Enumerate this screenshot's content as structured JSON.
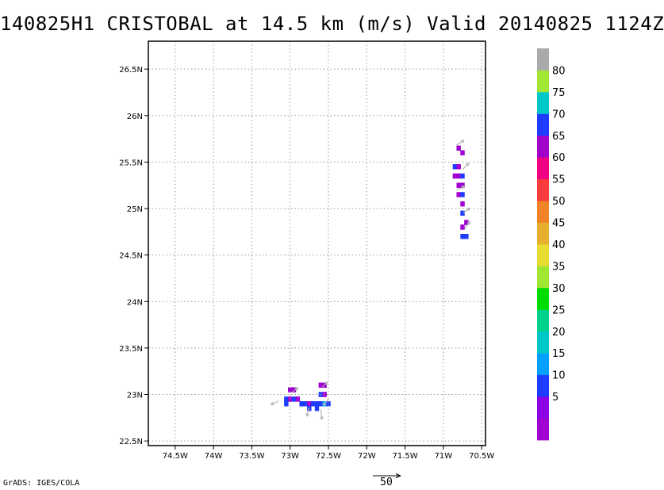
{
  "title": "140825H1 CRISTOBAL at 14.5 km (m/s) Valid 20140825 1124Z",
  "credit": "GrADS: IGES/COLA",
  "vector_reference": {
    "value": "50"
  },
  "map": {
    "lon_range": [
      -74.85,
      -70.45
    ],
    "lat_range": [
      22.45,
      26.8
    ],
    "lon_ticks": [
      {
        "value": -74.5,
        "label": "74.5W"
      },
      {
        "value": -74.0,
        "label": "74W"
      },
      {
        "value": -73.5,
        "label": "73.5W"
      },
      {
        "value": -73.0,
        "label": "73W"
      },
      {
        "value": -72.5,
        "label": "72.5W"
      },
      {
        "value": -72.0,
        "label": "72W"
      },
      {
        "value": -71.5,
        "label": "71.5W"
      },
      {
        "value": -71.0,
        "label": "71W"
      },
      {
        "value": -70.5,
        "label": "70.5W"
      }
    ],
    "lat_ticks": [
      {
        "value": 22.5,
        "label": "22.5N"
      },
      {
        "value": 23.0,
        "label": "23N"
      },
      {
        "value": 23.5,
        "label": "23.5N"
      },
      {
        "value": 24.0,
        "label": "24N"
      },
      {
        "value": 24.5,
        "label": "24.5N"
      },
      {
        "value": 25.0,
        "label": "25N"
      },
      {
        "value": 25.5,
        "label": "25.5N"
      },
      {
        "value": 26.0,
        "label": "26N"
      },
      {
        "value": 26.5,
        "label": "26.5N"
      }
    ],
    "grid": true
  },
  "colorbar": {
    "levels": [
      {
        "label": "",
        "color": "#a000d2"
      },
      {
        "label": "5",
        "color": "#8c00e6"
      },
      {
        "label": "10",
        "color": "#1e3cff"
      },
      {
        "label": "15",
        "color": "#00a0ff"
      },
      {
        "label": "20",
        "color": "#00c8c8"
      },
      {
        "label": "25",
        "color": "#00d28c"
      },
      {
        "label": "30",
        "color": "#00dc00"
      },
      {
        "label": "35",
        "color": "#a0e632"
      },
      {
        "label": "40",
        "color": "#e6dc32"
      },
      {
        "label": "45",
        "color": "#e6af2d"
      },
      {
        "label": "50",
        "color": "#f08228"
      },
      {
        "label": "55",
        "color": "#fa3c3c"
      },
      {
        "label": "60",
        "color": "#f00082"
      },
      {
        "label": "65",
        "color": "#a000c8"
      },
      {
        "label": "70",
        "color": "#1e3cff"
      },
      {
        "label": "75",
        "color": "#00c8c8"
      },
      {
        "label": "80",
        "color": "#a0e632"
      },
      {
        "label": "",
        "color": "#aaaaaa"
      }
    ]
  },
  "wind_cells": [
    {
      "lon": -70.8,
      "lat": 25.65,
      "speed": 3
    },
    {
      "lon": -70.75,
      "lat": 25.6,
      "speed": 3
    },
    {
      "lon": -70.85,
      "lat": 25.45,
      "speed": 10
    },
    {
      "lon": -70.8,
      "lat": 25.45,
      "speed": 3
    },
    {
      "lon": -70.85,
      "lat": 25.35,
      "speed": 3
    },
    {
      "lon": -70.8,
      "lat": 25.35,
      "speed": 3
    },
    {
      "lon": -70.75,
      "lat": 25.35,
      "speed": 10
    },
    {
      "lon": -70.8,
      "lat": 25.25,
      "speed": 3
    },
    {
      "lon": -70.75,
      "lat": 25.25,
      "speed": 3
    },
    {
      "lon": -70.8,
      "lat": 25.15,
      "speed": 3
    },
    {
      "lon": -70.75,
      "lat": 25.15,
      "speed": 10
    },
    {
      "lon": -70.75,
      "lat": 25.05,
      "speed": 3
    },
    {
      "lon": -70.75,
      "lat": 24.95,
      "speed": 10
    },
    {
      "lon": -70.7,
      "lat": 24.85,
      "speed": 3
    },
    {
      "lon": -70.75,
      "lat": 24.8,
      "speed": 3
    },
    {
      "lon": -70.7,
      "lat": 24.7,
      "speed": 10
    },
    {
      "lon": -70.75,
      "lat": 24.7,
      "speed": 10
    },
    {
      "lon": -73.0,
      "lat": 23.05,
      "speed": 3
    },
    {
      "lon": -72.95,
      "lat": 23.05,
      "speed": 3
    },
    {
      "lon": -73.05,
      "lat": 22.95,
      "speed": 10
    },
    {
      "lon": -73.0,
      "lat": 22.95,
      "speed": 3
    },
    {
      "lon": -72.95,
      "lat": 22.95,
      "speed": 10
    },
    {
      "lon": -72.9,
      "lat": 22.95,
      "speed": 3
    },
    {
      "lon": -72.85,
      "lat": 22.9,
      "speed": 10
    },
    {
      "lon": -72.8,
      "lat": 22.9,
      "speed": 10
    },
    {
      "lon": -72.75,
      "lat": 22.9,
      "speed": 3
    },
    {
      "lon": -72.7,
      "lat": 22.9,
      "speed": 10
    },
    {
      "lon": -72.65,
      "lat": 22.9,
      "speed": 10
    },
    {
      "lon": -72.6,
      "lat": 22.9,
      "speed": 10
    },
    {
      "lon": -72.55,
      "lat": 22.9,
      "speed": 15
    },
    {
      "lon": -72.5,
      "lat": 22.9,
      "speed": 10
    },
    {
      "lon": -72.75,
      "lat": 22.85,
      "speed": 10
    },
    {
      "lon": -72.65,
      "lat": 22.85,
      "speed": 10
    },
    {
      "lon": -72.6,
      "lat": 23.1,
      "speed": 3
    },
    {
      "lon": -72.55,
      "lat": 23.1,
      "speed": 3
    },
    {
      "lon": -72.6,
      "lat": 23.0,
      "speed": 10
    },
    {
      "lon": -72.55,
      "lat": 23.0,
      "speed": 3
    },
    {
      "lon": -73.05,
      "lat": 22.9,
      "speed": 10
    }
  ],
  "wind_vectors": [
    {
      "lon": -70.83,
      "lat": 25.68,
      "u": 6,
      "v": 4
    },
    {
      "lon": -70.75,
      "lat": 25.42,
      "u": 5,
      "v": 5
    },
    {
      "lon": -70.82,
      "lat": 25.2,
      "u": 6,
      "v": 3
    },
    {
      "lon": -70.74,
      "lat": 24.95,
      "u": 5,
      "v": 4
    },
    {
      "lon": -70.72,
      "lat": 24.78,
      "u": 4,
      "v": 6
    },
    {
      "lon": -73.15,
      "lat": 22.93,
      "u": -6,
      "v": -3
    },
    {
      "lon": -72.98,
      "lat": 23.02,
      "u": 5,
      "v": 4
    },
    {
      "lon": -72.75,
      "lat": 22.86,
      "u": -2,
      "v": -7
    },
    {
      "lon": -72.6,
      "lat": 22.84,
      "u": 1,
      "v": -8
    },
    {
      "lon": -72.58,
      "lat": 23.08,
      "u": 4,
      "v": 4
    },
    {
      "lon": -72.5,
      "lat": 22.95,
      "u": -4,
      "v": -5
    }
  ]
}
